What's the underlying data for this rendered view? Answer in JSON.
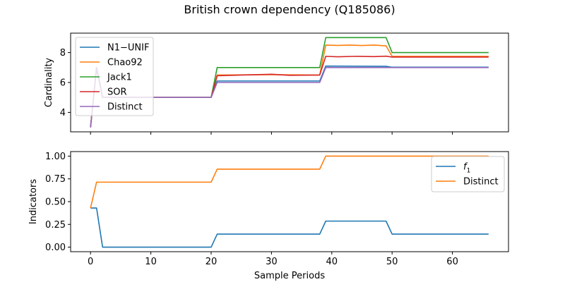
{
  "figure": {
    "title": "British crown dependency (Q185086)"
  },
  "chart_data": [
    {
      "type": "line",
      "ylabel": "Cardinality",
      "xlabel": "",
      "xlim": [
        -3.3,
        69.3
      ],
      "ylim": [
        2.7,
        9.3
      ],
      "xticks": [
        0,
        10,
        20,
        30,
        40,
        50,
        60
      ],
      "yticks": [
        4,
        6,
        8
      ],
      "show_x_tick_labels": false,
      "legend_position": "upper-left",
      "series": [
        {
          "name": "N1−UNIF",
          "color": "#1f77b4",
          "points": [
            [
              0,
              3
            ],
            [
              1,
              7
            ],
            [
              2,
              5
            ],
            [
              20,
              5
            ],
            [
              21,
              6.1
            ],
            [
              38,
              6.1
            ],
            [
              39,
              7.1
            ],
            [
              49,
              7.08
            ],
            [
              50,
              7.02
            ],
            [
              66,
              7.02
            ]
          ]
        },
        {
          "name": "Chao92",
          "color": "#ff7f0e",
          "points": [
            [
              0,
              3
            ],
            [
              1,
              7
            ],
            [
              2,
              5
            ],
            [
              20,
              5
            ],
            [
              21,
              6.5
            ],
            [
              30,
              6.52
            ],
            [
              38,
              6.5
            ],
            [
              39,
              8.5
            ],
            [
              41,
              8.48
            ],
            [
              43,
              8.5
            ],
            [
              45,
              8.47
            ],
            [
              47,
              8.5
            ],
            [
              49,
              8.45
            ],
            [
              50,
              7.75
            ],
            [
              66,
              7.75
            ]
          ]
        },
        {
          "name": "Jack1",
          "color": "#2ca02c",
          "points": [
            [
              0,
              3
            ],
            [
              1,
              7
            ],
            [
              2,
              5
            ],
            [
              20,
              5
            ],
            [
              21,
              7
            ],
            [
              38,
              7
            ],
            [
              39,
              9
            ],
            [
              49,
              9
            ],
            [
              50,
              8
            ],
            [
              66,
              8
            ]
          ]
        },
        {
          "name": "SOR",
          "color": "#d62728",
          "points": [
            [
              0,
              3
            ],
            [
              1,
              7
            ],
            [
              2,
              5
            ],
            [
              20,
              5
            ],
            [
              21,
              6.45
            ],
            [
              25,
              6.5
            ],
            [
              30,
              6.55
            ],
            [
              33,
              6.48
            ],
            [
              38,
              6.5
            ],
            [
              39,
              7.75
            ],
            [
              41,
              7.72
            ],
            [
              44,
              7.75
            ],
            [
              47,
              7.73
            ],
            [
              49,
              7.76
            ],
            [
              50,
              7.7
            ],
            [
              66,
              7.7
            ]
          ]
        },
        {
          "name": "Distinct",
          "color": "#9467bd",
          "points": [
            [
              0,
              3
            ],
            [
              1,
              7
            ],
            [
              2,
              5
            ],
            [
              20,
              5
            ],
            [
              21,
              6
            ],
            [
              38,
              6
            ],
            [
              39,
              7
            ],
            [
              66,
              7
            ]
          ]
        }
      ]
    },
    {
      "type": "line",
      "ylabel": "Indicators",
      "xlabel": "Sample Periods",
      "xlim": [
        -3.3,
        69.3
      ],
      "ylim": [
        -0.05,
        1.05
      ],
      "xticks": [
        0,
        10,
        20,
        30,
        40,
        50,
        60
      ],
      "yticks": [
        "0.00",
        "0.25",
        "0.50",
        "0.75",
        "1.00"
      ],
      "show_x_tick_labels": true,
      "legend_position": "upper-right",
      "series": [
        {
          "name": "f_1",
          "label_main": "f",
          "label_sub": "1",
          "color": "#1f77b4",
          "points": [
            [
              0,
              0.43
            ],
            [
              1,
              0.43
            ],
            [
              2,
              0
            ],
            [
              20,
              0
            ],
            [
              21,
              0.143
            ],
            [
              38,
              0.143
            ],
            [
              39,
              0.286
            ],
            [
              49,
              0.286
            ],
            [
              50,
              0.143
            ],
            [
              66,
              0.143
            ]
          ]
        },
        {
          "name": "Distinct",
          "color": "#ff7f0e",
          "points": [
            [
              0,
              0.43
            ],
            [
              1,
              0.714
            ],
            [
              20,
              0.714
            ],
            [
              21,
              0.857
            ],
            [
              38,
              0.857
            ],
            [
              39,
              1
            ],
            [
              66,
              1
            ]
          ]
        }
      ]
    }
  ]
}
